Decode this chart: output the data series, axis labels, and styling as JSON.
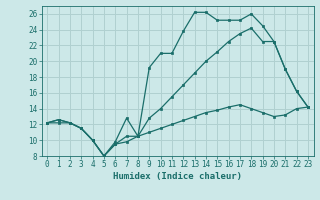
{
  "xlabel": "Humidex (Indice chaleur)",
  "bg_color": "#cce8e8",
  "grid_color": "#b0d0d0",
  "line_color": "#1a6e6a",
  "xlim": [
    -0.5,
    23.5
  ],
  "ylim": [
    8,
    27
  ],
  "xticks": [
    0,
    1,
    2,
    3,
    4,
    5,
    6,
    7,
    8,
    9,
    10,
    11,
    12,
    13,
    14,
    15,
    16,
    17,
    18,
    19,
    20,
    21,
    22,
    23
  ],
  "yticks": [
    8,
    10,
    12,
    14,
    16,
    18,
    20,
    22,
    24,
    26
  ],
  "line1_x": [
    0,
    1,
    2,
    3,
    4,
    5,
    6,
    7,
    8,
    9,
    10,
    11,
    12,
    13,
    14,
    15,
    16,
    17,
    18,
    19,
    20,
    21,
    22,
    23
  ],
  "line1_y": [
    12.2,
    12.6,
    12.2,
    11.5,
    10.0,
    8.0,
    9.8,
    12.8,
    10.5,
    19.2,
    21.0,
    21.0,
    23.8,
    26.2,
    26.2,
    25.2,
    25.2,
    25.2,
    26.0,
    24.5,
    22.5,
    19.0,
    16.2,
    14.2
  ],
  "line2_x": [
    0,
    1,
    2,
    3,
    4,
    5,
    6,
    7,
    8,
    9,
    10,
    11,
    12,
    13,
    14,
    15,
    16,
    17,
    18,
    19,
    20,
    21,
    22,
    23
  ],
  "line2_y": [
    12.2,
    12.6,
    12.2,
    11.5,
    10.0,
    8.0,
    9.5,
    9.8,
    10.5,
    12.8,
    14.0,
    15.5,
    17.0,
    18.5,
    20.0,
    21.2,
    22.5,
    23.5,
    24.2,
    22.5,
    22.5,
    19.0,
    16.2,
    14.2
  ],
  "line3_x": [
    0,
    1,
    2,
    3,
    4,
    5,
    6,
    7,
    8,
    9,
    10,
    11,
    12,
    13,
    14,
    15,
    16,
    17,
    18,
    19,
    20,
    21,
    22,
    23
  ],
  "line3_y": [
    12.2,
    12.2,
    12.2,
    11.5,
    10.0,
    8.0,
    9.5,
    10.5,
    10.5,
    11.0,
    11.5,
    12.0,
    12.5,
    13.0,
    13.5,
    13.8,
    14.2,
    14.5,
    14.0,
    13.5,
    13.0,
    13.2,
    14.0,
    14.2
  ],
  "tick_fontsize": 5.5,
  "xlabel_fontsize": 6.5
}
